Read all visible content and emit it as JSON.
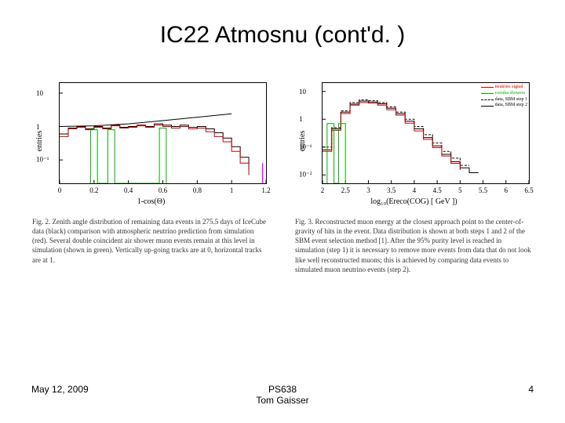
{
  "title": "IC22 Atmosnu (cont'd. )",
  "footer": {
    "date": "May 12, 2009",
    "center1": "PS638",
    "center2": "Tom Gaisser",
    "page": "4"
  },
  "fig2": {
    "type": "line",
    "ylabel": "entries",
    "xlabel": "1-cos(Θ)",
    "yscale": "log",
    "ylim": [
      0.02,
      20
    ],
    "yticks": [
      0.1,
      1,
      10
    ],
    "ytick_labels": [
      "10⁻¹",
      "1",
      "10"
    ],
    "xlim": [
      0,
      1.2
    ],
    "xticks": [
      0,
      0.2,
      0.4,
      0.6,
      0.8,
      1,
      1.2
    ],
    "background_color": "#ffffff",
    "frame_color": "#000000",
    "smooth_curve": {
      "color": "#000000",
      "width": 1,
      "points": [
        [
          0.0,
          1.0
        ],
        [
          0.2,
          1.05
        ],
        [
          0.4,
          1.2
        ],
        [
          0.6,
          1.5
        ],
        [
          0.8,
          1.9
        ],
        [
          1.0,
          2.4
        ]
      ]
    },
    "series": [
      {
        "name": "data",
        "color": "#000000",
        "width": 1,
        "step": [
          [
            0,
            0.6
          ],
          [
            0.05,
            0.6
          ],
          [
            0.05,
            0.9
          ],
          [
            0.1,
            0.9
          ],
          [
            0.1,
            1.0
          ],
          [
            0.15,
            1.0
          ],
          [
            0.15,
            0.85
          ],
          [
            0.2,
            0.85
          ],
          [
            0.2,
            1.0
          ],
          [
            0.25,
            1.0
          ],
          [
            0.25,
            0.9
          ],
          [
            0.3,
            0.9
          ],
          [
            0.3,
            1.1
          ],
          [
            0.35,
            1.1
          ],
          [
            0.35,
            0.95
          ],
          [
            0.4,
            0.95
          ],
          [
            0.4,
            1.0
          ],
          [
            0.45,
            1.0
          ],
          [
            0.45,
            1.1
          ],
          [
            0.5,
            1.1
          ],
          [
            0.5,
            1.0
          ],
          [
            0.55,
            1.0
          ],
          [
            0.55,
            1.2
          ],
          [
            0.6,
            1.2
          ],
          [
            0.6,
            1.1
          ],
          [
            0.65,
            1.1
          ],
          [
            0.65,
            1.0
          ],
          [
            0.7,
            1.0
          ],
          [
            0.7,
            1.1
          ],
          [
            0.75,
            1.1
          ],
          [
            0.75,
            0.95
          ],
          [
            0.8,
            0.95
          ],
          [
            0.8,
            1.0
          ],
          [
            0.85,
            1.0
          ],
          [
            0.85,
            0.85
          ],
          [
            0.9,
            0.85
          ],
          [
            0.9,
            0.65
          ],
          [
            0.95,
            0.65
          ],
          [
            0.95,
            0.45
          ],
          [
            1.0,
            0.45
          ],
          [
            1.0,
            0.25
          ],
          [
            1.05,
            0.25
          ],
          [
            1.05,
            0.12
          ],
          [
            1.1,
            0.12
          ],
          [
            1.1,
            0.05
          ]
        ]
      },
      {
        "name": "nu_pred",
        "color": "#cc0000",
        "width": 1,
        "step": [
          [
            0,
            0.5
          ],
          [
            0.05,
            0.5
          ],
          [
            0.05,
            0.85
          ],
          [
            0.1,
            0.85
          ],
          [
            0.1,
            0.95
          ],
          [
            0.15,
            0.95
          ],
          [
            0.15,
            0.8
          ],
          [
            0.2,
            0.8
          ],
          [
            0.2,
            0.95
          ],
          [
            0.25,
            0.95
          ],
          [
            0.25,
            0.85
          ],
          [
            0.3,
            0.85
          ],
          [
            0.3,
            1.05
          ],
          [
            0.35,
            1.05
          ],
          [
            0.35,
            0.9
          ],
          [
            0.4,
            0.9
          ],
          [
            0.4,
            0.95
          ],
          [
            0.45,
            0.95
          ],
          [
            0.45,
            1.05
          ],
          [
            0.5,
            1.05
          ],
          [
            0.5,
            0.95
          ],
          [
            0.55,
            0.95
          ],
          [
            0.55,
            1.1
          ],
          [
            0.6,
            1.1
          ],
          [
            0.6,
            1.0
          ],
          [
            0.65,
            1.0
          ],
          [
            0.65,
            0.9
          ],
          [
            0.7,
            0.9
          ],
          [
            0.7,
            1.0
          ],
          [
            0.75,
            1.0
          ],
          [
            0.75,
            0.85
          ],
          [
            0.8,
            0.85
          ],
          [
            0.8,
            0.9
          ],
          [
            0.85,
            0.9
          ],
          [
            0.85,
            0.7
          ],
          [
            0.9,
            0.7
          ],
          [
            0.9,
            0.5
          ],
          [
            0.95,
            0.5
          ],
          [
            0.95,
            0.35
          ],
          [
            1.0,
            0.35
          ],
          [
            1.0,
            0.18
          ],
          [
            1.05,
            0.18
          ],
          [
            1.05,
            0.08
          ],
          [
            1.1,
            0.08
          ],
          [
            1.1,
            0.035
          ]
        ]
      },
      {
        "name": "muon_green",
        "color": "#00b000",
        "width": 1,
        "step": [
          [
            0.18,
            0.02
          ],
          [
            0.18,
            0.8
          ],
          [
            0.22,
            0.8
          ],
          [
            0.22,
            0.02
          ],
          [
            0.28,
            0.02
          ],
          [
            0.28,
            0.8
          ],
          [
            0.32,
            0.8
          ],
          [
            0.32,
            0.02
          ],
          [
            0.58,
            0.02
          ],
          [
            0.58,
            0.9
          ],
          [
            0.62,
            0.9
          ],
          [
            0.62,
            0.02
          ]
        ]
      }
    ],
    "right_marker": {
      "color": "#ff00ff",
      "x": 1.18,
      "ylim": [
        0.02,
        0.08
      ]
    },
    "caption": "Fig. 2.   Zenith angle distribution of remaining data events in 275.5 days of IceCube data (black) comparison with atmospheric neutrino prediction from simulation (red). Several double coincident air shower muon events remain at this level in simulation (shown in green). Vertically up-going tracks are at 0, horizontal tracks are at 1."
  },
  "fig3": {
    "type": "line",
    "ylabel": "entries",
    "xlabel": "log₁₀(Ereco(COG) [ GeV ])",
    "yscale": "log",
    "ylim": [
      0.005,
      20
    ],
    "yticks": [
      0.01,
      0.1,
      1,
      10
    ],
    "ytick_labels": [
      "10⁻²",
      "10⁻¹",
      "1",
      "10"
    ],
    "xlim": [
      2,
      6.5
    ],
    "xticks": [
      2,
      2.5,
      3,
      3.5,
      4,
      4.5,
      5,
      5.5,
      6,
      6.5
    ],
    "background_color": "#ffffff",
    "frame_color": "#000000",
    "legend": {
      "pos": "top-right",
      "items": [
        {
          "label": "neutrino signal",
          "color": "#cc0000"
        },
        {
          "label": "corsika showers",
          "color": "#00b000"
        },
        {
          "label": "data, SBM step 1",
          "color": "#000000",
          "dash": true
        },
        {
          "label": "data, SBM step 2",
          "color": "#000000"
        }
      ]
    },
    "series": [
      {
        "name": "data_step2",
        "color": "#000000",
        "width": 1,
        "step": [
          [
            2,
            0.08
          ],
          [
            2.2,
            0.08
          ],
          [
            2.2,
            0.45
          ],
          [
            2.4,
            0.45
          ],
          [
            2.4,
            1.8
          ],
          [
            2.6,
            1.8
          ],
          [
            2.6,
            3.5
          ],
          [
            2.8,
            3.5
          ],
          [
            2.8,
            4.5
          ],
          [
            3.0,
            4.5
          ],
          [
            3.0,
            4.2
          ],
          [
            3.2,
            4.2
          ],
          [
            3.2,
            3.6
          ],
          [
            3.4,
            3.6
          ],
          [
            3.4,
            2.5
          ],
          [
            3.6,
            2.5
          ],
          [
            3.6,
            1.6
          ],
          [
            3.8,
            1.6
          ],
          [
            3.8,
            0.85
          ],
          [
            4.0,
            0.85
          ],
          [
            4.0,
            0.45
          ],
          [
            4.2,
            0.45
          ],
          [
            4.2,
            0.22
          ],
          [
            4.4,
            0.22
          ],
          [
            4.4,
            0.11
          ],
          [
            4.6,
            0.11
          ],
          [
            4.6,
            0.055
          ],
          [
            4.8,
            0.055
          ],
          [
            4.8,
            0.03
          ],
          [
            5.0,
            0.03
          ],
          [
            5.0,
            0.018
          ],
          [
            5.2,
            0.018
          ],
          [
            5.2,
            0.012
          ],
          [
            5.4,
            0.012
          ]
        ]
      },
      {
        "name": "data_step1",
        "color": "#000000",
        "width": 1,
        "dash": "3,2",
        "step": [
          [
            2,
            0.1
          ],
          [
            2.2,
            0.1
          ],
          [
            2.2,
            0.5
          ],
          [
            2.4,
            0.5
          ],
          [
            2.4,
            2.0
          ],
          [
            2.6,
            2.0
          ],
          [
            2.6,
            4.0
          ],
          [
            2.8,
            4.0
          ],
          [
            2.8,
            5.0
          ],
          [
            3.0,
            5.0
          ],
          [
            3.0,
            4.7
          ],
          [
            3.2,
            4.7
          ],
          [
            3.2,
            4.0
          ],
          [
            3.4,
            4.0
          ],
          [
            3.4,
            2.8
          ],
          [
            3.6,
            2.8
          ],
          [
            3.6,
            1.8
          ],
          [
            3.8,
            1.8
          ],
          [
            3.8,
            1.0
          ],
          [
            4.0,
            1.0
          ],
          [
            4.0,
            0.55
          ],
          [
            4.2,
            0.55
          ],
          [
            4.2,
            0.28
          ],
          [
            4.4,
            0.28
          ],
          [
            4.4,
            0.14
          ],
          [
            4.6,
            0.14
          ],
          [
            4.6,
            0.07
          ],
          [
            4.8,
            0.07
          ],
          [
            4.8,
            0.04
          ],
          [
            5.0,
            0.04
          ],
          [
            5.0,
            0.022
          ],
          [
            5.2,
            0.022
          ]
        ]
      },
      {
        "name": "neutrino",
        "color": "#cc0000",
        "width": 1,
        "step": [
          [
            2,
            0.07
          ],
          [
            2.2,
            0.07
          ],
          [
            2.2,
            0.4
          ],
          [
            2.4,
            0.4
          ],
          [
            2.4,
            1.6
          ],
          [
            2.6,
            1.6
          ],
          [
            2.6,
            3.2
          ],
          [
            2.8,
            3.2
          ],
          [
            2.8,
            4.0
          ],
          [
            3.0,
            4.0
          ],
          [
            3.0,
            3.8
          ],
          [
            3.2,
            3.8
          ],
          [
            3.2,
            3.2
          ],
          [
            3.4,
            3.2
          ],
          [
            3.4,
            2.2
          ],
          [
            3.6,
            2.2
          ],
          [
            3.6,
            1.4
          ],
          [
            3.8,
            1.4
          ],
          [
            3.8,
            0.72
          ],
          [
            4.0,
            0.72
          ],
          [
            4.0,
            0.38
          ],
          [
            4.2,
            0.38
          ],
          [
            4.2,
            0.19
          ],
          [
            4.4,
            0.19
          ],
          [
            4.4,
            0.095
          ],
          [
            4.6,
            0.095
          ],
          [
            4.6,
            0.048
          ],
          [
            4.8,
            0.048
          ],
          [
            4.8,
            0.026
          ],
          [
            5.0,
            0.026
          ],
          [
            5.0,
            0.015
          ]
        ]
      },
      {
        "name": "corsika",
        "color": "#00b000",
        "width": 1,
        "step": [
          [
            2.1,
            0.005
          ],
          [
            2.1,
            0.7
          ],
          [
            2.25,
            0.7
          ],
          [
            2.25,
            0.005
          ],
          [
            2.35,
            0.005
          ],
          [
            2.35,
            0.7
          ],
          [
            2.5,
            0.7
          ],
          [
            2.5,
            0.005
          ]
        ]
      }
    ],
    "caption": "Fig. 3.   Reconstructed muon energy at the closest approach point to the center-of-gravity of hits in the event. Data distribution is shown at both steps 1 and 2 of the SBM event selection method [1]. After the 95% purity level is reached in simulation (step 1) it is necessary to remove more events from data that do not look like well reconstructed muons; this is achieved by comparing data events to simulated muon neutrino events (step 2)."
  }
}
